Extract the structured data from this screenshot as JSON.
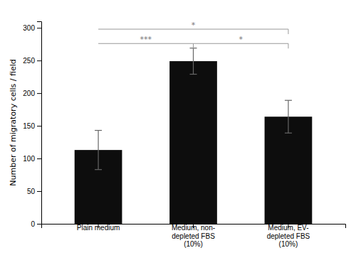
{
  "chart_data": {
    "type": "bar",
    "categories": [
      "Plain medium",
      "Medium, non-\ndepleted FBS\n(10%)",
      "Medium, EV-\ndepleted FBS\n(10%)"
    ],
    "values": [
      113,
      249,
      164
    ],
    "errors": [
      30,
      20,
      25
    ],
    "color": "#0d0d0d",
    "ylabel": "Number of migratory cells / field",
    "ylim": [
      0,
      310
    ],
    "yticks": [
      0,
      50,
      100,
      150,
      200,
      250,
      300
    ],
    "grid": false,
    "annotations": [
      {
        "text": "***",
        "from": 0,
        "to": 1,
        "y": 276
      },
      {
        "text": "*",
        "from": 1,
        "to": 2,
        "y": 276
      },
      {
        "text": "*",
        "from": 0,
        "to": 2,
        "y": 298
      }
    ]
  }
}
